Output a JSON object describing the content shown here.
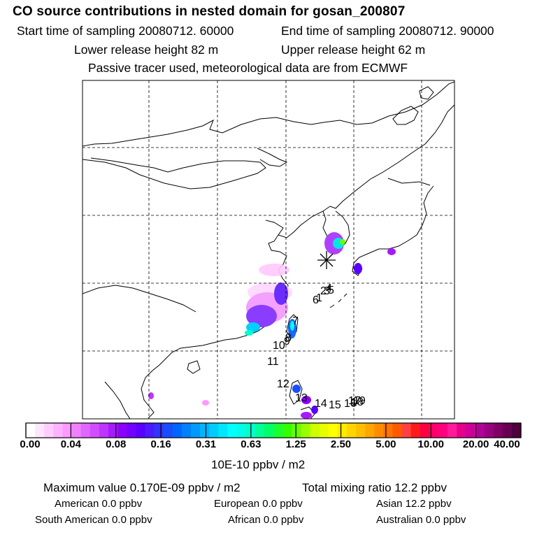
{
  "header": {
    "title": "CO  source contributions in nested domain for gosan_200807",
    "start_label": "Start time of sampling 20080712. 60000",
    "end_label": "End time of sampling 20080712. 90000",
    "lower_label": "Lower release height   82 m",
    "upper_label": "Upper release height   62 m",
    "note": "Passive tracer used, meteorological data are from ECMWF"
  },
  "map": {
    "receptor_icon": "asterisk-icon",
    "source_markers": [
      "1",
      "2",
      "3",
      "4",
      "5",
      "6",
      "7",
      "8",
      "9",
      "10",
      "11",
      "12",
      "13",
      "14",
      "15",
      "16",
      "17",
      "18",
      "19"
    ],
    "colors": {
      "coastline": "#000000",
      "plume_low": "#ff99ff",
      "plume_mid": "#8800ff",
      "plume_high": "#00ffcc"
    }
  },
  "colorbar": {
    "labels": [
      "0.00",
      "0.04",
      "0.08",
      "0.16",
      "0.31",
      "0.63",
      "1.25",
      "2.50",
      "5.00",
      "10.00",
      "20.00",
      "40.00"
    ],
    "units": "10E-10 ppbv / m2",
    "colors": [
      "#ffffff",
      "#ffe6ff",
      "#ffccff",
      "#ffb3ff",
      "#ff99ff",
      "#f080ff",
      "#e066ff",
      "#d04dff",
      "#c033ff",
      "#a61aff",
      "#8c00ff",
      "#7300ff",
      "#5a00ff",
      "#4d1aff",
      "#3333ff",
      "#1a4dff",
      "#0066ff",
      "#0080ff",
      "#0099ff",
      "#00b3ff",
      "#00ccff",
      "#00e6ff",
      "#00ffff",
      "#00ffe6",
      "#00ffcc",
      "#00ff99",
      "#00ff66",
      "#1aff33",
      "#33ff00",
      "#66ff00",
      "#99ff00",
      "#ccff00",
      "#e6ff00",
      "#ffff00",
      "#ffea00",
      "#ffd500",
      "#ffbf00",
      "#ffa600",
      "#ff8c00",
      "#ff7300",
      "#ff5900",
      "#ff4040",
      "#ff1a1a",
      "#ff0040",
      "#ff0066",
      "#ff0080",
      "#ff1a99",
      "#e6008c",
      "#cc0099",
      "#b30099",
      "#990080",
      "#800066",
      "#660050",
      "#4d003d"
    ]
  },
  "stats": {
    "maximum_label": "Maximum value  0.170E-09 ppbv / m2",
    "total_label": "Total mixing ratio       12.2 ppbv",
    "american": "American       0.0 ppbv",
    "european": "European       0.0 ppbv",
    "asian": "Asian       12.2 ppbv",
    "south_american": "South American       0.0 ppbv",
    "african": "African       0.0 ppbv",
    "australian": "Australian       0.0 ppbv"
  }
}
